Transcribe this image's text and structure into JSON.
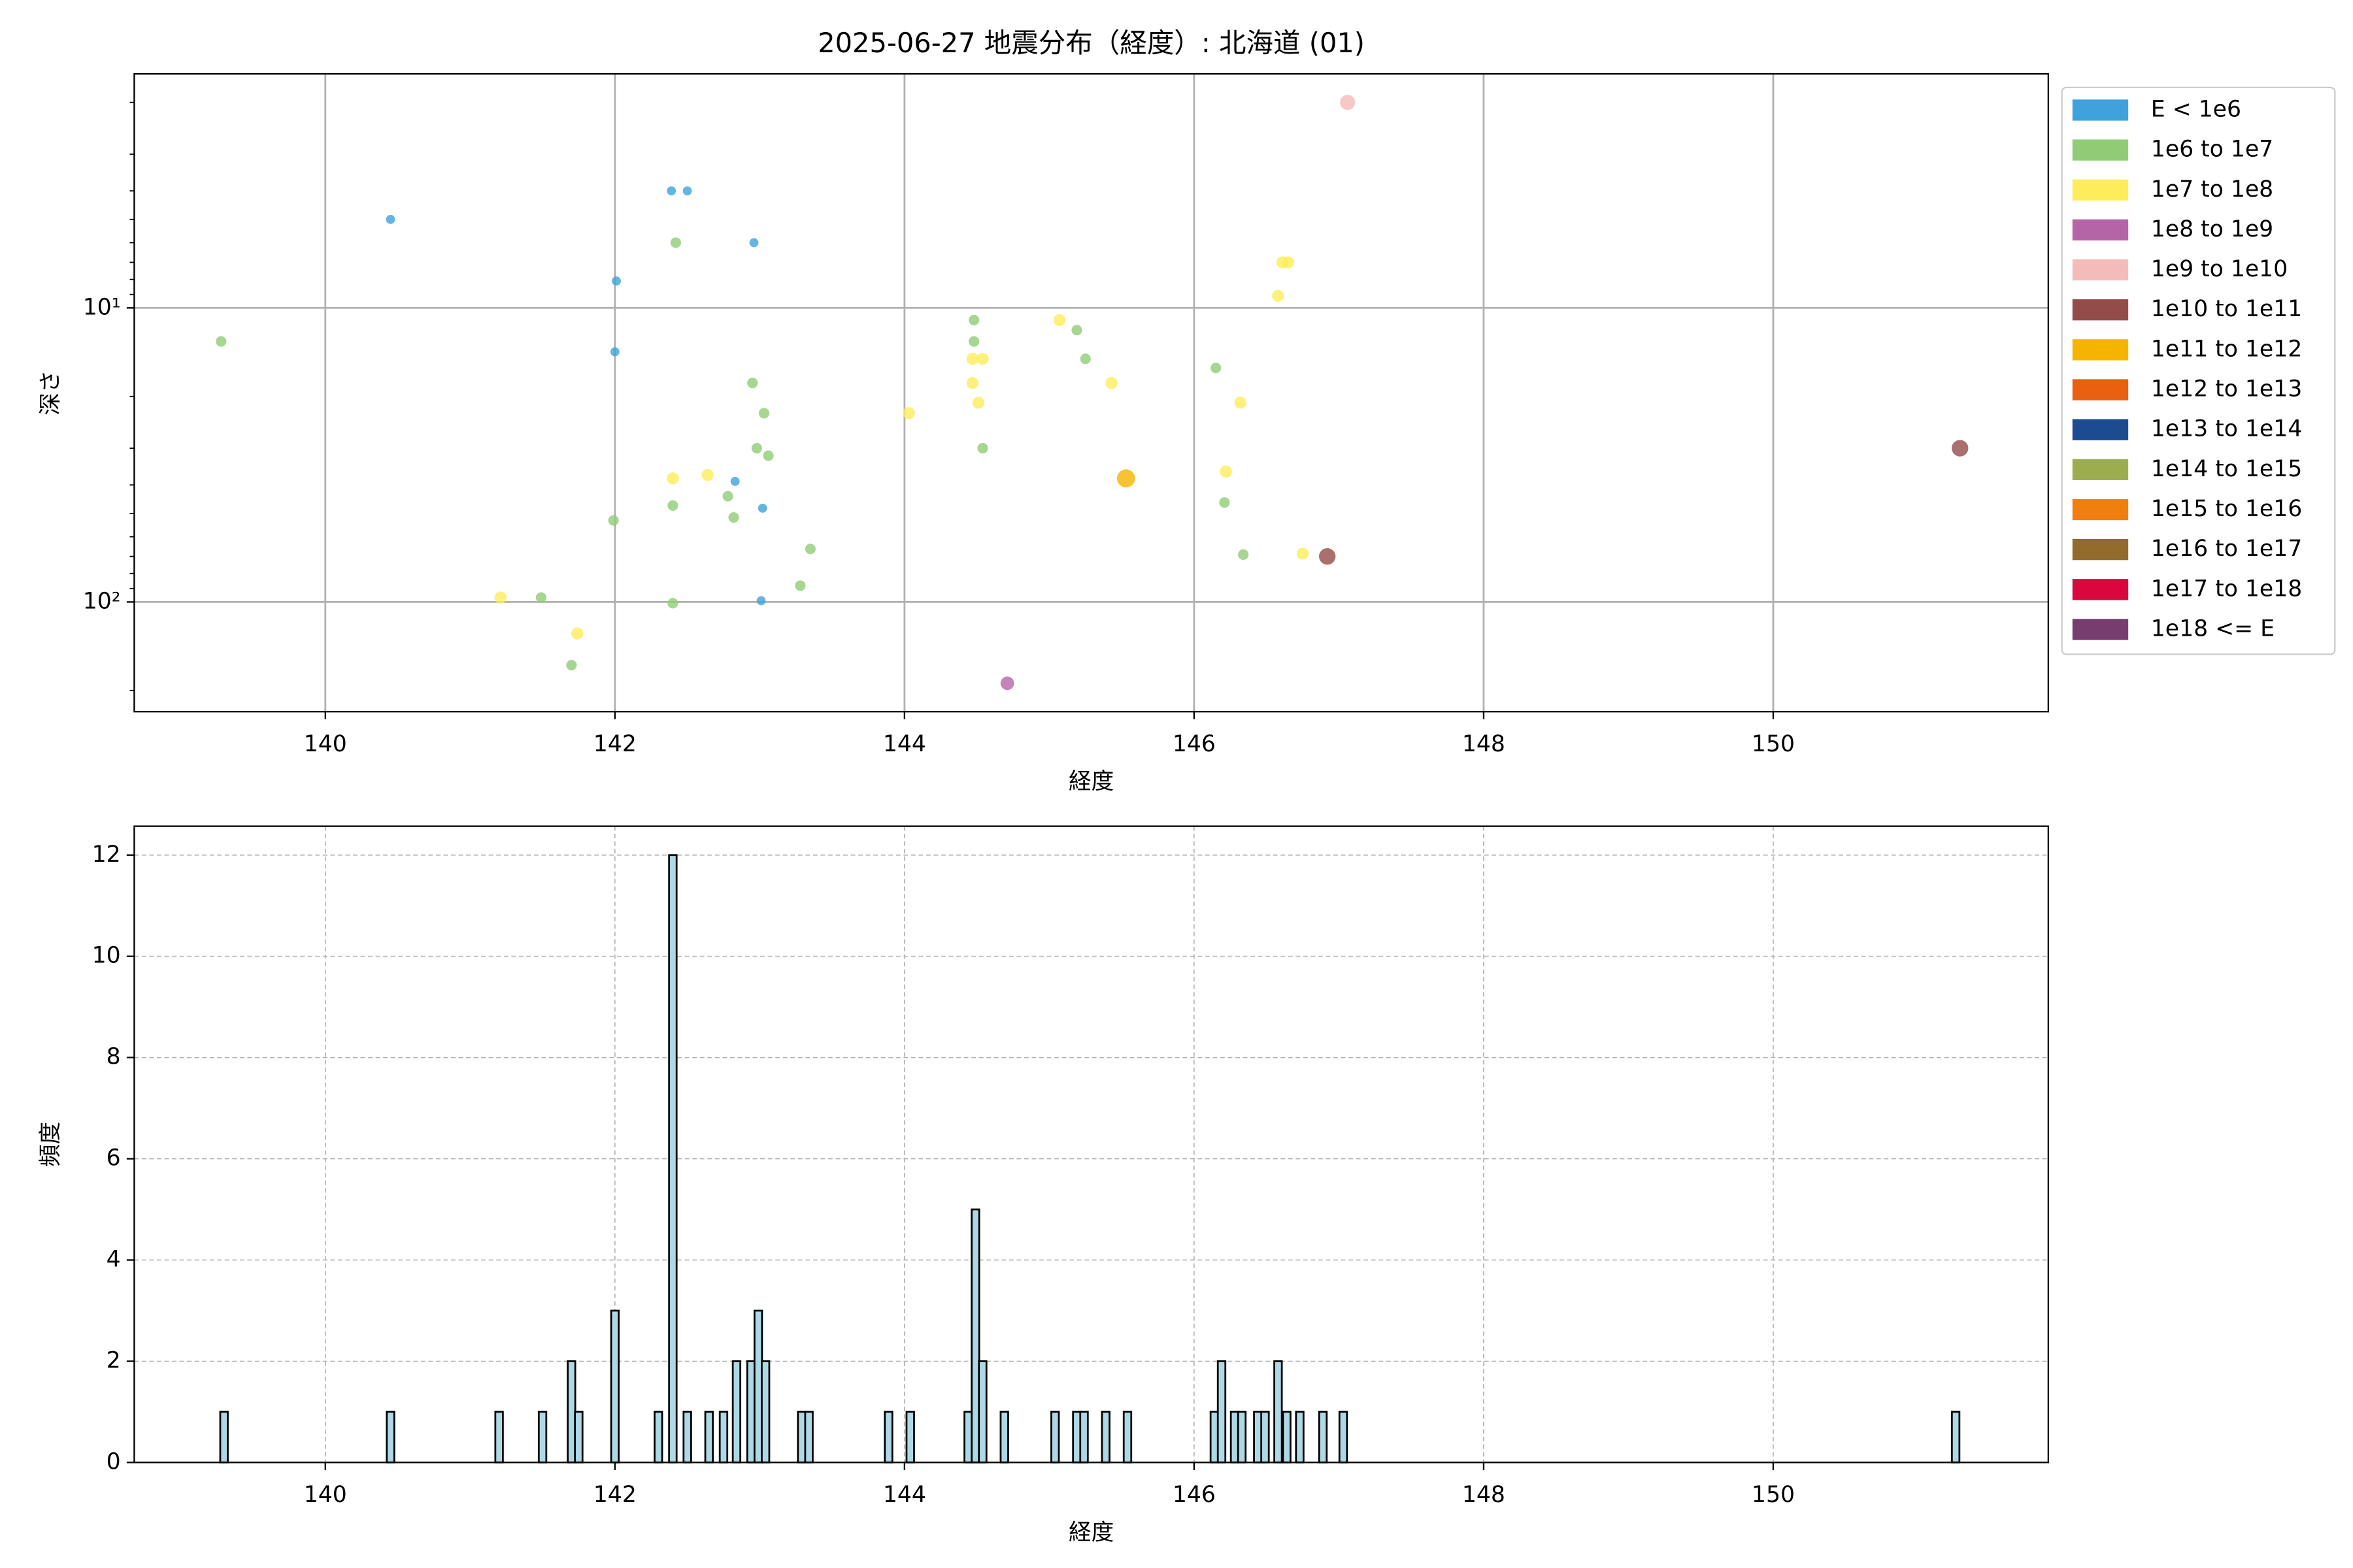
{
  "chart_data": [
    {
      "type": "scatter",
      "title": "2025-06-27 地震分布（経度）: 北海道 (01)",
      "xlabel": "経度",
      "ylabel": "深さ",
      "xlim": [
        138.68,
        151.9
      ],
      "xticks": [
        140,
        142,
        144,
        146,
        148,
        150
      ],
      "ylim": [
        236,
        1.6
      ],
      "ylog": true,
      "yticks": [
        {
          "value": 10,
          "label": "10¹"
        },
        {
          "value": 100,
          "label": "10²"
        }
      ],
      "yminorticks": [
        2,
        3,
        4,
        5,
        6,
        7,
        8,
        9,
        20,
        30,
        40,
        50,
        60,
        70,
        80,
        90,
        200
      ],
      "grid": true,
      "grid_linestyle": "solid",
      "legend": "outside upper right",
      "series": [
        {
          "name": "E < 1e6",
          "color": "#3fa2dc",
          "x": [
            140.45,
            142.39,
            142.5,
            142.96,
            142.01,
            142.0,
            142.83,
            143.02,
            143.01
          ],
          "values": [
            5.0,
            4.0,
            4.0,
            6.0,
            8.1,
            14.1,
            38.9,
            48,
            99
          ]
        },
        {
          "name": "1e6 to 1e7",
          "color": "#90cc75",
          "x": [
            139.28,
            142.42,
            144.48,
            145.19,
            145.25,
            144.48,
            142.95,
            143.03,
            142.98,
            143.06,
            144.54,
            146.15,
            146.21,
            142.4,
            142.78,
            142.82,
            141.99,
            143.35,
            146.34,
            143.28,
            141.49,
            142.4,
            141.7
          ],
          "values": [
            13,
            6.0,
            11,
            11.9,
            14.9,
            13,
            18,
            22.8,
            30,
            31.8,
            30,
            16,
            45.9,
            47,
            43.7,
            51.6,
            52.8,
            66,
            69,
            88,
            96.6,
            101,
            164
          ]
        },
        {
          "name": "1e7 to 1e8",
          "color": "#fded5a",
          "x": [
            145.07,
            144.47,
            144.54,
            144.47,
            145.43,
            144.51,
            146.32,
            144.03,
            146.61,
            146.65,
            146.58,
            142.64,
            142.4,
            146.22,
            146.75,
            141.21,
            141.74
          ],
          "values": [
            11,
            14.9,
            14.9,
            18,
            18,
            21,
            21,
            22.8,
            7.0,
            7.0,
            9.1,
            37,
            38,
            36,
            68.5,
            96.6,
            128
          ]
        },
        {
          "name": "1e8 to 1e9",
          "color": "#b565a7",
          "x": [
            144.71
          ],
          "values": [
            189
          ]
        },
        {
          "name": "1e9 to 1e10",
          "color": "#f4bcb8",
          "x": [
            147.06
          ],
          "values": [
            2.0
          ]
        },
        {
          "name": "1e10 to 1e11",
          "color": "#944c4a",
          "x": [
            151.29,
            146.92
          ],
          "values": [
            30,
            70
          ]
        },
        {
          "name": "1e11 to 1e12",
          "color": "#f5b400",
          "x": [
            145.53
          ],
          "values": [
            38
          ]
        },
        {
          "name": "1e12 to 1e13",
          "color": "#e86010",
          "x": [],
          "values": []
        },
        {
          "name": "1e13 to 1e14",
          "color": "#1d4b92",
          "x": [],
          "values": []
        },
        {
          "name": "1e14 to 1e15",
          "color": "#9cad50",
          "x": [],
          "values": []
        },
        {
          "name": "1e15 to 1e16",
          "color": "#f07f10",
          "x": [],
          "values": []
        },
        {
          "name": "1e16 to 1e17",
          "color": "#936b2d",
          "x": [],
          "values": []
        },
        {
          "name": "1e17 to 1e18",
          "color": "#d9073c",
          "x": [],
          "values": []
        },
        {
          "name": "1e18 <= E",
          "color": "#773d6f",
          "x": [],
          "values": []
        }
      ]
    },
    {
      "type": "bar",
      "xlabel": "経度",
      "ylabel": "頻度",
      "color": "#add8e6",
      "edgecolor": "#000000",
      "xlim": [
        138.68,
        151.9
      ],
      "xticks": [
        140,
        142,
        144,
        146,
        148,
        150
      ],
      "ylim": [
        0,
        12.57
      ],
      "yticks": [
        0,
        2,
        4,
        6,
        8,
        10,
        12
      ],
      "grid": true,
      "grid_linestyle": "dashed",
      "x": [
        139.3,
        140.45,
        141.2,
        141.5,
        141.7,
        141.75,
        142.0,
        142.3,
        142.4,
        142.5,
        142.65,
        142.75,
        142.84,
        142.94,
        142.99,
        143.04,
        143.29,
        143.34,
        143.89,
        144.04,
        144.44,
        144.49,
        144.54,
        144.69,
        145.04,
        145.19,
        145.24,
        145.39,
        145.54,
        146.14,
        146.19,
        146.28,
        146.33,
        146.44,
        146.49,
        146.58,
        146.64,
        146.73,
        146.89,
        147.03,
        151.26
      ],
      "values": [
        1,
        1,
        1,
        1,
        2,
        1,
        3,
        1,
        12,
        1,
        1,
        1,
        2,
        2,
        3,
        2,
        1,
        1,
        1,
        1,
        1,
        5,
        2,
        1,
        1,
        1,
        1,
        1,
        1,
        1,
        2,
        1,
        1,
        1,
        1,
        2,
        1,
        1,
        1,
        1,
        1
      ]
    }
  ]
}
